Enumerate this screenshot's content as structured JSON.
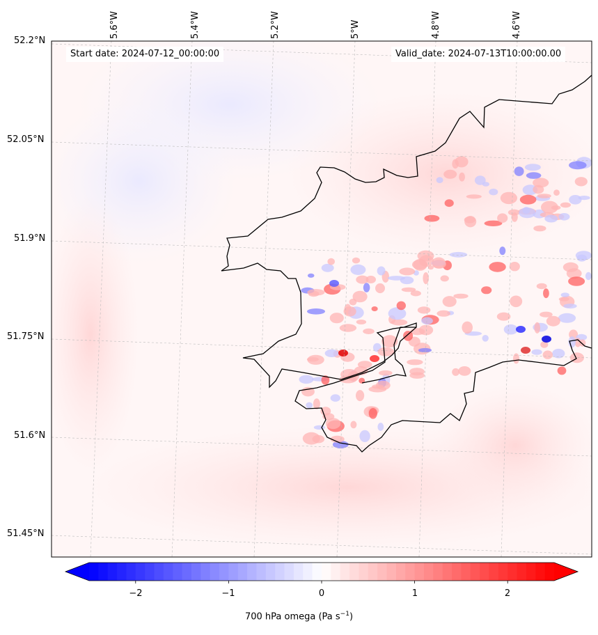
{
  "map": {
    "start_date": "Start date: 2024-07-12_00:00:00",
    "valid_date": "Valid_date: 2024-07-13T10:00:00.00",
    "lon_labels": [
      "5.6°W",
      "5.4°W",
      "5.2°W",
      "5°W",
      "4.8°W",
      "4.6°W"
    ],
    "lat_labels": [
      "52.2°N",
      "52.05°N",
      "51.9°N",
      "51.75°N",
      "51.6°N",
      "51.45°N"
    ],
    "field": "700 hPa omega",
    "background_color": "#fff8f8",
    "coast_color": "#000000"
  },
  "colorbar": {
    "title_main": "700 hPa omega (Pa s",
    "title_exp": "−1",
    "title_close": ")",
    "ticks": [
      "−2",
      "−1",
      "0",
      "1",
      "2"
    ],
    "tick_values": [
      -2,
      -1,
      0,
      1,
      2
    ],
    "min": -2.5,
    "max": 2.5,
    "low_color": "#0000ff",
    "mid_color": "#ffffff",
    "high_color": "#ff0000"
  }
}
